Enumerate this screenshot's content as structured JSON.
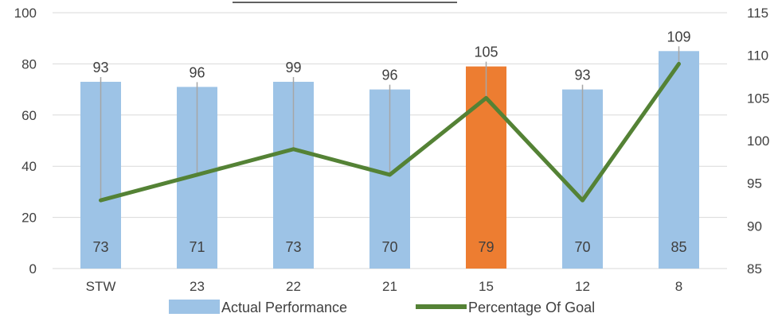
{
  "chart_data": {
    "type": "bar",
    "title": "",
    "categories": [
      "STW",
      "23",
      "22",
      "21",
      "15",
      "12",
      "8"
    ],
    "series": [
      {
        "name": "Actual Performance",
        "type": "bar",
        "axis": "left",
        "values": [
          73,
          71,
          73,
          70,
          79,
          70,
          85
        ],
        "color": "#9DC3E6",
        "highlight_index": 4,
        "highlight_color": "#ED7D31"
      },
      {
        "name": "Percentage Of Goal",
        "type": "line",
        "axis": "right",
        "values": [
          93,
          96,
          99,
          96,
          105,
          93,
          109
        ],
        "color": "#548235"
      }
    ],
    "y_left": {
      "ylim": [
        0,
        100
      ],
      "ticks": [
        "0",
        "20",
        "40",
        "60",
        "80",
        "100"
      ]
    },
    "y_right": {
      "ylim": [
        85,
        115
      ],
      "ticks": [
        "85",
        "90",
        "95",
        "100",
        "105",
        "110",
        "115"
      ]
    },
    "grid": true,
    "legend": "bottom"
  }
}
